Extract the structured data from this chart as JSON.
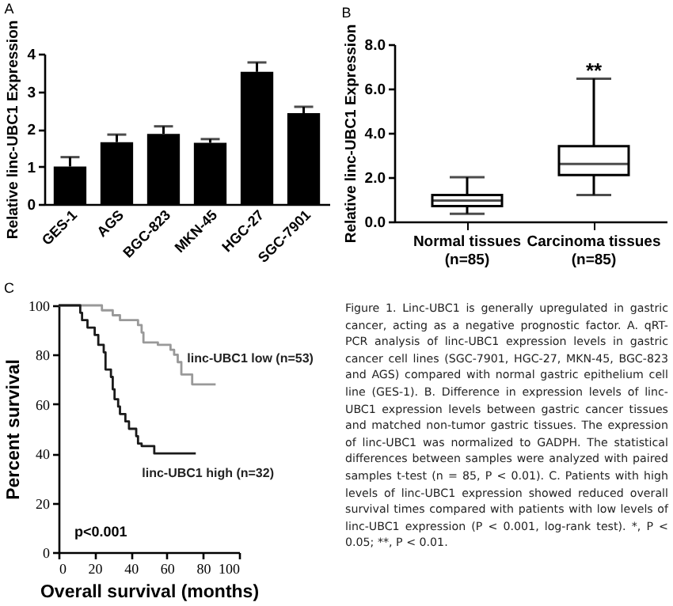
{
  "chart_data": [
    {
      "type": "bar",
      "title": "A",
      "ylabel": "Relative linc-UBC1 Expression",
      "categories": [
        "GES-1",
        "AGS",
        "BGC-823",
        "MKN-45",
        "HGC-27",
        "SGC-7901"
      ],
      "values": [
        1.0,
        1.65,
        1.87,
        1.63,
        3.52,
        2.42
      ],
      "color": "#000000",
      "errors": [
        [
          1.0,
          1.25
        ],
        [
          1.65,
          1.85
        ],
        [
          1.87,
          2.07
        ],
        [
          1.63,
          1.73
        ],
        [
          3.52,
          3.77
        ],
        [
          2.42,
          2.59
        ]
      ],
      "ylim": [
        0,
        4
      ],
      "yticks": [
        0,
        1,
        2,
        3,
        4
      ]
    },
    {
      "type": "box",
      "title": "B",
      "ylabel": "Relative linc-UBC1 Expression",
      "categories": [
        "Normal tissues\n(n=85)",
        "Carcinoma tissues\n(n=85)"
      ],
      "boxes": [
        {
          "low": 0.35,
          "q1": 0.7,
          "median": 0.95,
          "q3": 1.2,
          "high": 2.0
        },
        {
          "low": 1.2,
          "q1": 2.1,
          "median": 2.6,
          "q3": 3.4,
          "high": 6.45
        }
      ],
      "annotations": [
        {
          "text": "**",
          "x": "Carcinoma tissues\n(n=85)",
          "y": 6.8
        }
      ],
      "ylim": [
        0,
        8
      ],
      "yticks": [
        {
          "value": 0,
          "label": "0.0"
        },
        {
          "value": 2,
          "label": "2.0"
        },
        {
          "value": 4,
          "label": "4.0"
        },
        {
          "value": 6,
          "label": "6.0"
        },
        {
          "value": 8,
          "label": "8.0"
        }
      ]
    },
    {
      "type": "step",
      "title": "C",
      "xlabel": "Overall survival (months)",
      "ylabel": "Percent survival",
      "series": [
        {
          "name": "linc-UBC1 low (n=53)",
          "color": "#999999",
          "x": [
            0,
            24,
            30,
            34,
            44,
            46,
            47,
            55,
            62,
            64,
            66,
            68,
            74,
            87
          ],
          "values": [
            100,
            98,
            96,
            94,
            92,
            89,
            85,
            84,
            82,
            80,
            77,
            72,
            68,
            68
          ]
        },
        {
          "name": "linc-UBC1 high (n=32)",
          "color": "#1a1a1a",
          "x": [
            0,
            12,
            13,
            16,
            20,
            22,
            25,
            26,
            29,
            30,
            31,
            33,
            34,
            37,
            39,
            43,
            44,
            46,
            53,
            76
          ],
          "values": [
            100,
            97,
            94,
            91,
            88,
            84,
            81,
            74,
            71,
            66,
            62,
            59,
            56,
            53,
            50,
            47,
            44,
            43,
            40,
            40
          ]
        }
      ],
      "annotations": [
        "p<0.001"
      ],
      "xlim": [
        0,
        100
      ],
      "xticks": [
        0,
        20,
        40,
        60,
        80,
        100
      ],
      "ylim": [
        0,
        100
      ],
      "yticks": [
        0,
        20,
        40,
        60,
        80,
        100
      ]
    },
    {
      "type": "other",
      "annotations": [
        "Figure 1. Linc-UBC1 is generally upregulated in gastric cancer, acting as a negative prognostic factor. A. qRT-PCR analysis of linc-UBC1 expression levels in gastric cancer cell lines (SGC-7901, HGC-27, MKN-45, BGC-823 and AGS) compared with normal gastric epithelium cell line (GES-1). B. Difference in expression levels of linc-UBC1 expression levels between gastric cancer tissues and matched non-tumor gastric tissues. The expression of linc-UBC1 was normalized to GADPH. The statistical differences between samples were analyzed with paired samples t-test (n = 85, P < 0.01). C. Patients with high levels of linc-UBC1 expression showed reduced overall survival times compared with patients with low levels of linc-UBC1 expression (P < 0.001, log-rank test). *, P < 0.05; **, P < 0.01."
      ]
    }
  ]
}
